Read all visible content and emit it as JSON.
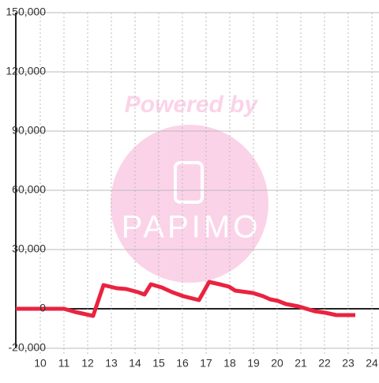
{
  "chart_data": {
    "type": "line",
    "watermark": {
      "line1": "Powered by",
      "line2": "PAPIMO"
    },
    "x": [
      8.967,
      11,
      11.47,
      12.23,
      12.67,
      13.23,
      13.63,
      14.13,
      14.4,
      14.67,
      15.13,
      15.57,
      16.03,
      16.7,
      17.13,
      17.57,
      17.97,
      18.23,
      18.97,
      19.4,
      19.7,
      20.03,
      20.37,
      20.9,
      21.57,
      22.03,
      22.5,
      23.3
    ],
    "series": [
      {
        "color": "#ea2340",
        "values": [
          0,
          0,
          -1600,
          -3600,
          12000,
          10400,
          10000,
          8400,
          7200,
          12400,
          10800,
          8400,
          6400,
          4400,
          13600,
          12400,
          11200,
          9200,
          8000,
          6400,
          4800,
          4000,
          2400,
          1200,
          -1200,
          -2000,
          -3200,
          -3200
        ]
      }
    ],
    "xlim": [
      8.967,
      24.3
    ],
    "ylim": [
      -20000,
      150000
    ],
    "xticks": [
      10,
      11,
      12,
      13,
      14,
      15,
      16,
      17,
      18,
      19,
      20,
      21,
      22,
      23,
      24
    ],
    "yticks": [
      {
        "value": -20000,
        "label": "-20,000"
      },
      0,
      {
        "value": 30000,
        "label": "30,000"
      },
      {
        "value": 60000,
        "label": "60,000"
      },
      {
        "value": 90000,
        "label": "90,000"
      },
      {
        "value": 120000,
        "label": "120,000"
      },
      {
        "value": 150000,
        "label": "150,000"
      }
    ],
    "grid": true
  }
}
